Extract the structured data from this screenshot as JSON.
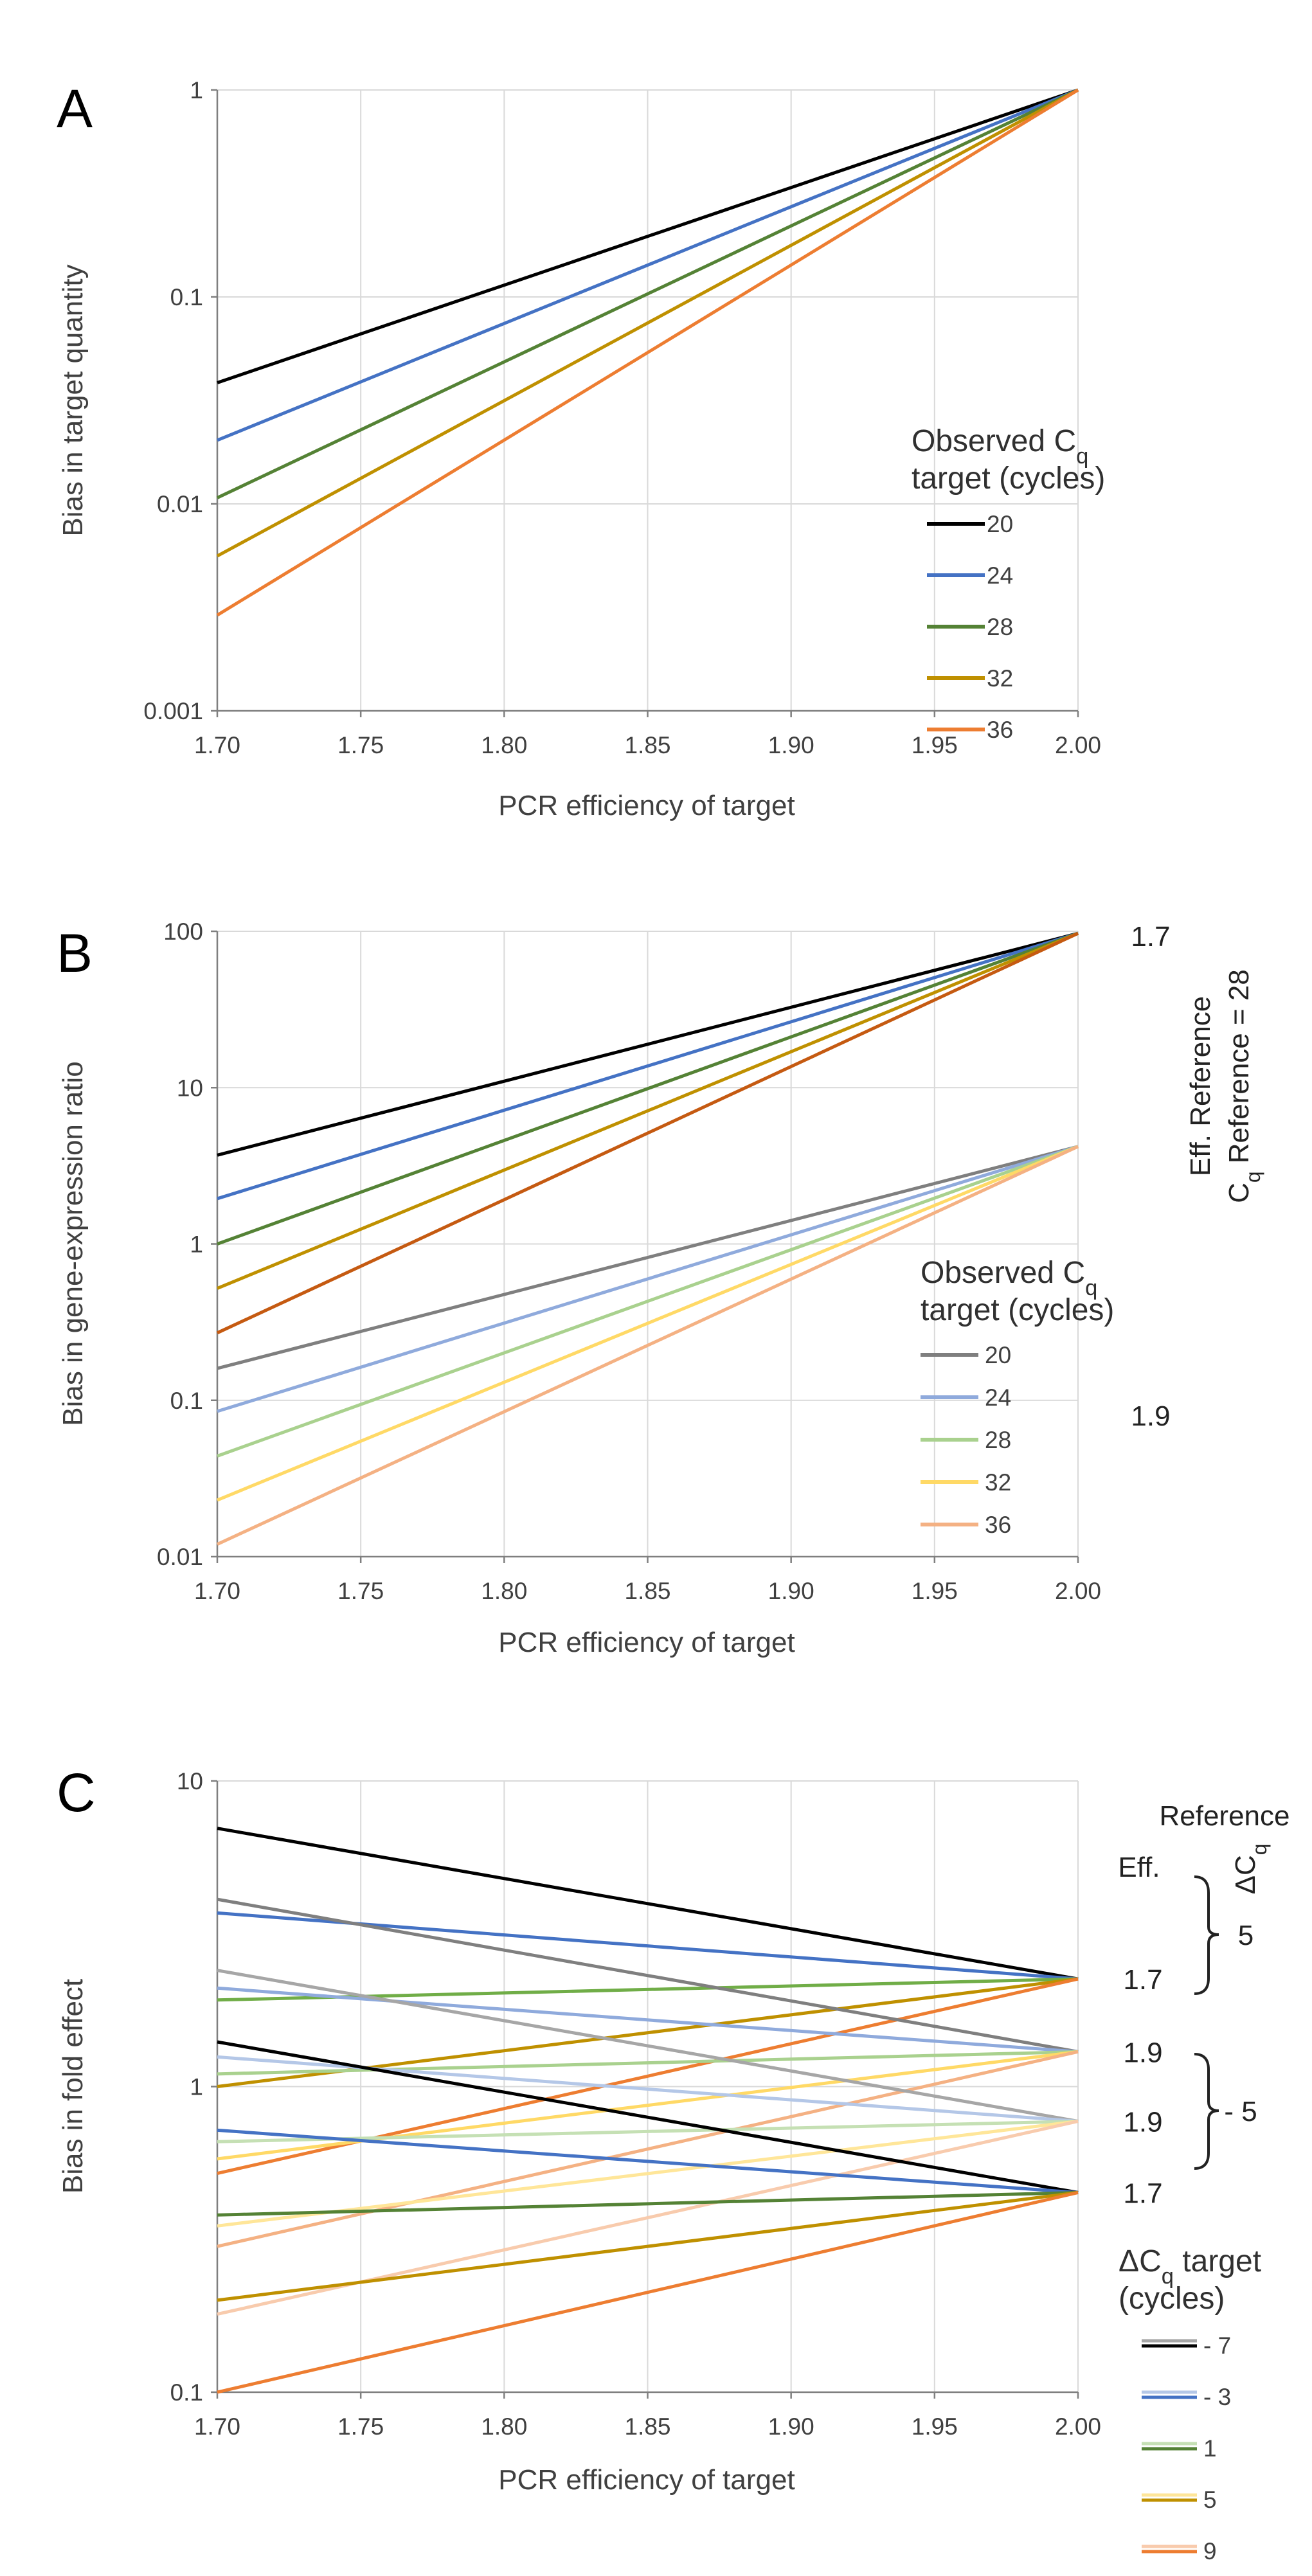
{
  "chart_data": [
    {
      "panel": "A",
      "type": "line",
      "xlabel": "PCR efficiency of target",
      "ylabel": "Bias in target quantity",
      "yscale": "log",
      "xlim": [
        1.7,
        2.0
      ],
      "ylim": [
        0.001,
        1
      ],
      "x_ticks": [
        "1.70",
        "1.75",
        "1.80",
        "1.85",
        "1.90",
        "1.95",
        "2.00"
      ],
      "y_ticks": [
        "0.001",
        "0.01",
        "0.1",
        "1"
      ],
      "legend_title_line1": "Observed C",
      "legend_title_sub": "q",
      "legend_title_line2": "target (cycles)",
      "series": [
        {
          "name": "20",
          "color": "#000000",
          "x": [
            1.7,
            2.0
          ],
          "y": [
            0.0385,
            1
          ]
        },
        {
          "name": "24",
          "color": "#4472c4",
          "x": [
            1.7,
            2.0
          ],
          "y": [
            0.0203,
            1
          ]
        },
        {
          "name": "28",
          "color": "#548235",
          "x": [
            1.7,
            2.0
          ],
          "y": [
            0.0107,
            1
          ]
        },
        {
          "name": "32",
          "color": "#bf9000",
          "x": [
            1.7,
            2.0
          ],
          "y": [
            0.0056,
            1
          ]
        },
        {
          "name": "36",
          "color": "#ed7d31",
          "x": [
            1.7,
            2.0
          ],
          "y": [
            0.0029,
            1
          ]
        }
      ]
    },
    {
      "panel": "B",
      "type": "line",
      "xlabel": "PCR efficiency of target",
      "ylabel": "Bias in gene-expression ratio",
      "yscale": "log",
      "xlim": [
        1.7,
        2.0
      ],
      "ylim": [
        0.01,
        100
      ],
      "x_ticks": [
        "1.70",
        "1.75",
        "1.80",
        "1.85",
        "1.90",
        "1.95",
        "2.00"
      ],
      "y_ticks": [
        "0.01",
        "0.1",
        "1",
        "10",
        "100"
      ],
      "legend_title_line1": "Observed C",
      "legend_title_sub": "q",
      "legend_title_line2": "target (cycles)",
      "side_title_1": "Eff. Reference",
      "side_title_2_main": "C",
      "side_title_2_sub": "q",
      "side_title_2_rest": " Reference = 28",
      "end_labels": [
        "1.7",
        "1.9"
      ],
      "legend_items": [
        {
          "name": "20",
          "color": "#7f7f7f"
        },
        {
          "name": "24",
          "color": "#8faadc"
        },
        {
          "name": "28",
          "color": "#a9d18e"
        },
        {
          "name": "32",
          "color": "#ffd966"
        },
        {
          "name": "36",
          "color": "#f4b183"
        }
      ],
      "series": [
        {
          "name": "20 (Eff. ref 1.7)",
          "color": "#000000",
          "x": [
            1.7,
            2.0
          ],
          "y": [
            3.7,
            97
          ]
        },
        {
          "name": "24 (Eff. ref 1.7)",
          "color": "#4472c4",
          "x": [
            1.7,
            2.0
          ],
          "y": [
            1.95,
            97
          ]
        },
        {
          "name": "28 (Eff. ref 1.7)",
          "color": "#548235",
          "x": [
            1.7,
            2.0
          ],
          "y": [
            1.0,
            97
          ]
        },
        {
          "name": "32 (Eff. ref 1.7)",
          "color": "#bf9000",
          "x": [
            1.7,
            2.0
          ],
          "y": [
            0.52,
            97
          ]
        },
        {
          "name": "36 (Eff. ref 1.7)",
          "color": "#c55a11",
          "x": [
            1.7,
            2.0
          ],
          "y": [
            0.27,
            97
          ]
        },
        {
          "name": "20 (Eff. ref 1.9)",
          "color": "#7f7f7f",
          "x": [
            1.7,
            2.0
          ],
          "y": [
            0.16,
            4.2
          ]
        },
        {
          "name": "24 (Eff. ref 1.9)",
          "color": "#8faadc",
          "x": [
            1.7,
            2.0
          ],
          "y": [
            0.085,
            4.2
          ]
        },
        {
          "name": "28 (Eff. ref 1.9)",
          "color": "#a9d18e",
          "x": [
            1.7,
            2.0
          ],
          "y": [
            0.044,
            4.2
          ]
        },
        {
          "name": "32 (Eff. ref 1.9)",
          "color": "#ffd966",
          "x": [
            1.7,
            2.0
          ],
          "y": [
            0.023,
            4.2
          ]
        },
        {
          "name": "36 (Eff. ref 1.9)",
          "color": "#f4b183",
          "x": [
            1.7,
            2.0
          ],
          "y": [
            0.012,
            4.2
          ]
        }
      ]
    },
    {
      "panel": "C",
      "type": "line",
      "xlabel": "PCR efficiency of target",
      "ylabel": "Bias in fold effect",
      "yscale": "log",
      "xlim": [
        1.7,
        2.0
      ],
      "ylim": [
        0.1,
        10
      ],
      "x_ticks": [
        "1.70",
        "1.75",
        "1.80",
        "1.85",
        "1.90",
        "1.95",
        "2.00"
      ],
      "y_ticks": [
        "0.1",
        "1",
        "10"
      ],
      "reference_title": "Reference",
      "eff_header": "Eff.",
      "dcq_header_main": "ΔC",
      "dcq_header_sub": "q",
      "end_labels": [
        "1.7",
        "1.9",
        "1.9",
        "1.7"
      ],
      "dcq_values": [
        "5",
        "- 5"
      ],
      "legend_title_main": "ΔC",
      "legend_title_sub": "q",
      "legend_title_rest": " target",
      "legend_title_line2": "(cycles)",
      "legend_items": [
        {
          "name": "- 7",
          "dark": "#000000",
          "light": "#a6a6a6"
        },
        {
          "name": "- 3",
          "dark": "#4472c4",
          "light": "#b4c7e7"
        },
        {
          "name": "1",
          "dark": "#548235",
          "light": "#c5e0b4"
        },
        {
          "name": "5",
          "dark": "#bf9000",
          "light": "#ffe699"
        },
        {
          "name": "9",
          "dark": "#ed7d31",
          "light": "#f8cbad"
        }
      ],
      "series": [
        {
          "name": "-7 / ref 1.7 / ΔCq 5",
          "color": "#000000",
          "x": [
            1.7,
            2.0
          ],
          "y": [
            7.0,
            2.25
          ]
        },
        {
          "name": "-3 / ref 1.7 / ΔCq 5",
          "color": "#4472c4",
          "x": [
            1.7,
            2.0
          ],
          "y": [
            3.7,
            2.25
          ]
        },
        {
          "name": "1 / ref 1.7 / ΔCq 5",
          "color": "#70ad47",
          "x": [
            1.7,
            2.0
          ],
          "y": [
            1.92,
            2.25
          ]
        },
        {
          "name": "5 / ref 1.7 / ΔCq 5",
          "color": "#bf9000",
          "x": [
            1.7,
            2.0
          ],
          "y": [
            1.0,
            2.25
          ]
        },
        {
          "name": "9 / ref 1.7 / ΔCq 5",
          "color": "#ed7d31",
          "x": [
            1.7,
            2.0
          ],
          "y": [
            0.52,
            2.25
          ]
        },
        {
          "name": "-7 / ref 1.9 / ΔCq 5",
          "color": "#7f7f7f",
          "x": [
            1.7,
            2.0
          ],
          "y": [
            4.1,
            1.3
          ]
        },
        {
          "name": "-3 / ref 1.9 / ΔCq 5",
          "color": "#8faadc",
          "x": [
            1.7,
            2.0
          ],
          "y": [
            2.1,
            1.3
          ]
        },
        {
          "name": "1 / ref 1.9 / ΔCq 5",
          "color": "#a9d18e",
          "x": [
            1.7,
            2.0
          ],
          "y": [
            1.1,
            1.3
          ]
        },
        {
          "name": "5 / ref 1.9 / ΔCq 5",
          "color": "#ffd966",
          "x": [
            1.7,
            2.0
          ],
          "y": [
            0.58,
            1.3
          ]
        },
        {
          "name": "9 / ref 1.9 / ΔCq 5",
          "color": "#f4b183",
          "x": [
            1.7,
            2.0
          ],
          "y": [
            0.3,
            1.3
          ]
        },
        {
          "name": "-7 / ref 1.9 / ΔCq -5",
          "color": "#a6a6a6",
          "x": [
            1.7,
            2.0
          ],
          "y": [
            2.4,
            0.77
          ]
        },
        {
          "name": "-3 / ref 1.9 / ΔCq -5",
          "color": "#b4c7e7",
          "x": [
            1.7,
            2.0
          ],
          "y": [
            1.25,
            0.77
          ]
        },
        {
          "name": "1 / ref 1.9 / ΔCq -5",
          "color": "#c5e0b4",
          "x": [
            1.7,
            2.0
          ],
          "y": [
            0.66,
            0.77
          ]
        },
        {
          "name": "5 / ref 1.9 / ΔCq -5",
          "color": "#ffe699",
          "x": [
            1.7,
            2.0
          ],
          "y": [
            0.35,
            0.77
          ]
        },
        {
          "name": "9 / ref 1.9 / ΔCq -5",
          "color": "#f8cbad",
          "x": [
            1.7,
            2.0
          ],
          "y": [
            0.18,
            0.77
          ]
        },
        {
          "name": "-7 / ref 1.7 / ΔCq -5",
          "color": "#000000",
          "x": [
            1.7,
            2.0
          ],
          "y": [
            1.4,
            0.45
          ]
        },
        {
          "name": "-3 / ref 1.7 / ΔCq -5",
          "color": "#4472c4",
          "x": [
            1.7,
            2.0
          ],
          "y": [
            0.72,
            0.45
          ]
        },
        {
          "name": "1 / ref 1.7 / ΔCq -5",
          "color": "#548235",
          "x": [
            1.7,
            2.0
          ],
          "y": [
            0.38,
            0.45
          ]
        },
        {
          "name": "5 / ref 1.7 / ΔCq -5",
          "color": "#bf9000",
          "x": [
            1.7,
            2.0
          ],
          "y": [
            0.2,
            0.45
          ]
        },
        {
          "name": "9 / ref 1.7 / ΔCq -5",
          "color": "#ed7d31",
          "x": [
            1.7,
            2.0
          ],
          "y": [
            0.1,
            0.45
          ]
        }
      ]
    }
  ]
}
